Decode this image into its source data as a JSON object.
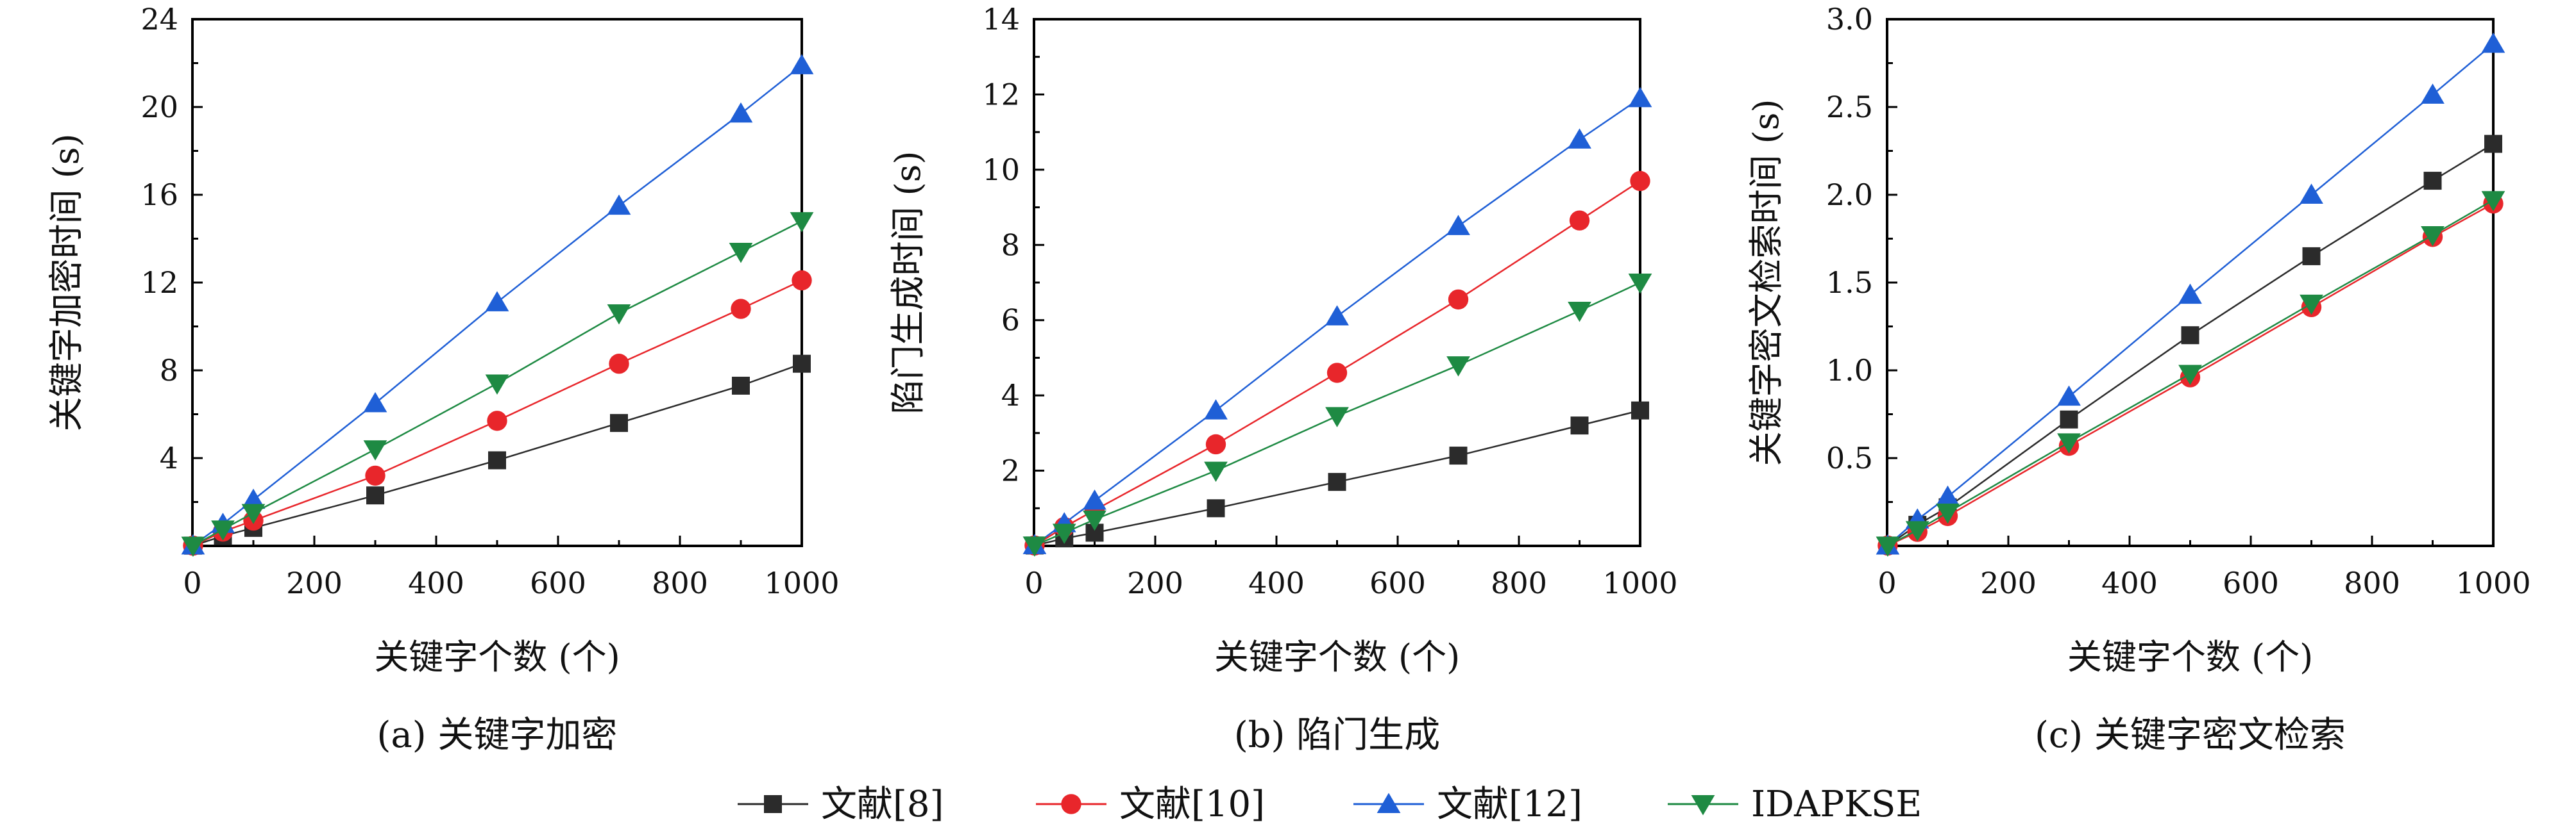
{
  "colors": {
    "ref8": "#2b2b2b",
    "ref10": "#e8262b",
    "ref12": "#1f5fd6",
    "idapkse": "#1e8a43"
  },
  "legend": [
    {
      "key": "ref8",
      "label": "文献[8]",
      "marker": "square"
    },
    {
      "key": "ref10",
      "label": "文献[10]",
      "marker": "circle"
    },
    {
      "key": "ref12",
      "label": "文献[12]",
      "marker": "triangle-up"
    },
    {
      "key": "idapkse",
      "label": "IDAPKSE",
      "marker": "triangle-down"
    }
  ],
  "chart_data": [
    {
      "type": "line",
      "caption": "(a) 关键字加密",
      "xlabel": "关键字个数 (个)",
      "ylabel": "关键字加密时间 (s)",
      "xlim": [
        0,
        1000
      ],
      "ylim": [
        0,
        24
      ],
      "xticks": [
        0,
        200,
        400,
        600,
        800,
        1000
      ],
      "yticks": [
        4,
        8,
        12,
        16,
        20,
        24
      ],
      "x": [
        1,
        50,
        100,
        300,
        500,
        700,
        900,
        1000
      ],
      "series": [
        {
          "name": "文献[8]",
          "key": "ref8",
          "values": [
            0.01,
            0.45,
            0.82,
            2.3,
            3.9,
            5.6,
            7.3,
            8.3
          ]
        },
        {
          "name": "文献[10]",
          "key": "ref10",
          "values": [
            0.01,
            0.65,
            1.15,
            3.2,
            5.7,
            8.3,
            10.8,
            12.1
          ]
        },
        {
          "name": "文献[12]",
          "key": "ref12",
          "values": [
            0.02,
            1.0,
            2.1,
            6.5,
            11.1,
            15.5,
            19.7,
            21.9
          ]
        },
        {
          "name": "IDAPKSE",
          "key": "idapkse",
          "values": [
            0.01,
            0.75,
            1.5,
            4.4,
            7.4,
            10.6,
            13.4,
            14.8
          ]
        }
      ]
    },
    {
      "type": "line",
      "caption": "(b) 陷门生成",
      "xlabel": "关键字个数 (个)",
      "ylabel": "陷门生成时间 (s)",
      "xlim": [
        0,
        1000
      ],
      "ylim": [
        0,
        14
      ],
      "xticks": [
        0,
        200,
        400,
        600,
        800,
        1000
      ],
      "yticks": [
        2,
        4,
        6,
        8,
        10,
        12,
        14
      ],
      "x": [
        1,
        50,
        100,
        300,
        500,
        700,
        900,
        1000
      ],
      "series": [
        {
          "name": "文献[8]",
          "key": "ref8",
          "values": [
            0.01,
            0.2,
            0.35,
            1.0,
            1.7,
            2.4,
            3.2,
            3.6
          ]
        },
        {
          "name": "文献[10]",
          "key": "ref10",
          "values": [
            0.01,
            0.5,
            0.95,
            2.7,
            4.6,
            6.55,
            8.65,
            9.7
          ]
        },
        {
          "name": "文献[12]",
          "key": "ref12",
          "values": [
            0.02,
            0.6,
            1.2,
            3.6,
            6.1,
            8.5,
            10.8,
            11.9
          ]
        },
        {
          "name": "IDAPKSE",
          "key": "idapkse",
          "values": [
            0.01,
            0.35,
            0.7,
            2.0,
            3.45,
            4.8,
            6.25,
            7.0
          ]
        }
      ]
    },
    {
      "type": "line",
      "caption": "(c) 关键字密文检索",
      "xlabel": "关键字个数 (个)",
      "ylabel": "关键字密文检索时间 (s)",
      "xlim": [
        0,
        1000
      ],
      "ylim": [
        0,
        3.0
      ],
      "xticks": [
        0,
        200,
        400,
        600,
        800,
        1000
      ],
      "yticks": [
        0.5,
        1.0,
        1.5,
        2.0,
        2.5,
        3.0
      ],
      "ytick_labels": [
        "0.5",
        "1.0",
        "1.5",
        "2.0",
        "2.5",
        "3.0"
      ],
      "x": [
        1,
        50,
        100,
        300,
        500,
        700,
        900,
        1000
      ],
      "series": [
        {
          "name": "文献[8]",
          "key": "ref8",
          "values": [
            0.002,
            0.12,
            0.22,
            0.72,
            1.2,
            1.65,
            2.08,
            2.29
          ]
        },
        {
          "name": "文献[10]",
          "key": "ref10",
          "values": [
            0.002,
            0.08,
            0.17,
            0.57,
            0.96,
            1.36,
            1.76,
            1.95
          ]
        },
        {
          "name": "文献[12]",
          "key": "ref12",
          "values": [
            0.002,
            0.15,
            0.28,
            0.85,
            1.43,
            2.0,
            2.57,
            2.86
          ]
        },
        {
          "name": "IDAPKSE",
          "key": "idapkse",
          "values": [
            0.002,
            0.09,
            0.19,
            0.59,
            0.98,
            1.38,
            1.77,
            1.97
          ]
        }
      ]
    }
  ]
}
